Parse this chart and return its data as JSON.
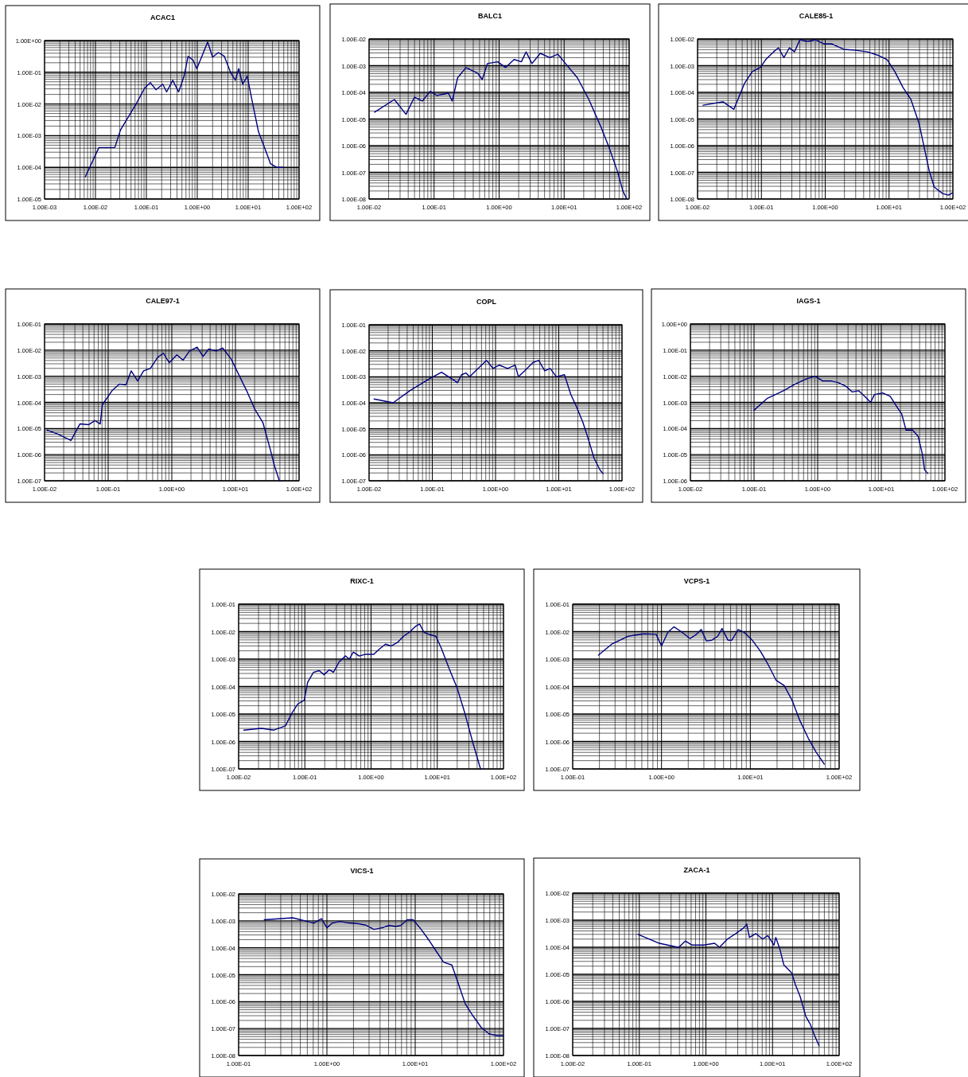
{
  "chart_data": [
    {
      "type": "line",
      "title": "ACAC1",
      "log": "xy",
      "grid": true,
      "xlim": [
        0.001,
        100
      ],
      "ylim": [
        1e-05,
        1
      ],
      "xticks": [
        {
          "value": 0.001,
          "label": "1.00E-03"
        },
        {
          "value": 0.01,
          "label": "1.00E-02"
        },
        {
          "value": 0.1,
          "label": "1.00E-01"
        },
        {
          "value": 1,
          "label": "1.00E+00"
        },
        {
          "value": 10,
          "label": "1.00E+01"
        },
        {
          "value": 100,
          "label": "1.00E+02"
        }
      ],
      "yticks": [
        {
          "value": 1e-05,
          "label": "1.00E-05"
        },
        {
          "value": 0.0001,
          "label": "1.00E-04"
        },
        {
          "value": 0.001,
          "label": "1.00E-03"
        },
        {
          "value": 0.01,
          "label": "1.00E-02"
        },
        {
          "value": 0.1,
          "label": "1.00E-01"
        },
        {
          "value": 1,
          "label": "1.00E+00"
        }
      ],
      "series": [
        {
          "color": "#000080",
          "x": [
            0.0063,
            0.0117,
            0.024,
            0.031,
            0.041,
            0.063,
            0.093,
            0.12,
            0.155,
            0.21,
            0.25,
            0.33,
            0.43,
            0.55,
            0.66,
            0.83,
            0.98,
            1.26,
            1.6,
            2.0,
            2.6,
            3.4,
            4.5,
            5.6,
            6.5,
            7.8,
            9.6,
            12.3,
            16,
            21,
            27.5,
            36,
            49
          ],
          "values": [
            5e-05,
            0.00042,
            0.00042,
            0.0015,
            0.0032,
            0.01,
            0.032,
            0.047,
            0.028,
            0.042,
            0.024,
            0.056,
            0.024,
            0.075,
            0.32,
            0.24,
            0.13,
            0.35,
            0.9,
            0.3,
            0.42,
            0.32,
            0.1,
            0.056,
            0.13,
            0.042,
            0.075,
            0.01,
            0.0013,
            0.00042,
            0.00013,
            0.0001,
            0.0001
          ]
        }
      ]
    },
    {
      "type": "line",
      "title": "BALC1",
      "log": "xy",
      "grid": true,
      "xlim": [
        0.01,
        100
      ],
      "ylim": [
        1e-08,
        0.01
      ],
      "xticks": [
        {
          "value": 0.01,
          "label": "1.00E-02"
        },
        {
          "value": 0.1,
          "label": "1.00E-01"
        },
        {
          "value": 1,
          "label": "1.00E+00"
        },
        {
          "value": 10,
          "label": "1.00E+01"
        },
        {
          "value": 100,
          "label": "1.00E+02"
        }
      ],
      "yticks": [
        {
          "value": 1e-08,
          "label": "1.00E-08"
        },
        {
          "value": 1e-07,
          "label": "1.00E-07"
        },
        {
          "value": 1e-06,
          "label": "1.00E-06"
        },
        {
          "value": 1e-05,
          "label": "1.00E-05"
        },
        {
          "value": 0.0001,
          "label": "1.00E-04"
        },
        {
          "value": 0.001,
          "label": "1.00E-03"
        },
        {
          "value": 0.01,
          "label": "1.00E-02"
        }
      ],
      "series": [
        {
          "color": "#000080",
          "x": [
            0.0122,
            0.0245,
            0.037,
            0.05,
            0.066,
            0.087,
            0.11,
            0.166,
            0.19,
            0.23,
            0.31,
            0.47,
            0.55,
            0.66,
            0.95,
            1.26,
            1.7,
            2.2,
            2.6,
            3.2,
            4.3,
            6,
            8,
            10.5,
            16,
            24,
            37,
            49,
            66,
            80,
            92
          ],
          "values": [
            1.8e-05,
            5.4e-05,
            1.5e-05,
            6.6e-05,
            4.7e-05,
            0.00011,
            7.6e-05,
            9.3e-05,
            4.7e-05,
            0.00035,
            0.00085,
            0.00052,
            0.0003,
            0.0012,
            0.0014,
            0.00085,
            0.0017,
            0.0014,
            0.0033,
            0.0012,
            0.0029,
            0.002,
            0.0027,
            0.0012,
            0.00035,
            5.4e-05,
            4.9e-06,
            8.7e-07,
            1.1e-07,
            2e-08,
            1e-08
          ]
        }
      ]
    },
    {
      "type": "line",
      "title": "CALE85-1",
      "log": "xy",
      "grid": true,
      "xlim": [
        0.01,
        100
      ],
      "ylim": [
        1e-08,
        0.01
      ],
      "xticks": [
        {
          "value": 0.01,
          "label": "1.00E-02"
        },
        {
          "value": 0.1,
          "label": "1.00E-01"
        },
        {
          "value": 1,
          "label": "1.00E+00"
        },
        {
          "value": 10,
          "label": "1.00E+01"
        },
        {
          "value": 100,
          "label": "1.00E+02"
        }
      ],
      "yticks": [
        {
          "value": 1e-08,
          "label": "1.00E-08"
        },
        {
          "value": 1e-07,
          "label": "1.00E-07"
        },
        {
          "value": 1e-06,
          "label": "1.00E-06"
        },
        {
          "value": 1e-05,
          "label": "1.00E-05"
        },
        {
          "value": 0.0001,
          "label": "1.00E-04"
        },
        {
          "value": 0.001,
          "label": "1.00E-03"
        },
        {
          "value": 0.01,
          "label": "1.00E-02"
        }
      ],
      "series": [
        {
          "color": "#000080",
          "x": [
            0.0122,
            0.025,
            0.037,
            0.054,
            0.072,
            0.096,
            0.117,
            0.155,
            0.185,
            0.225,
            0.275,
            0.33,
            0.4,
            0.53,
            0.71,
            0.95,
            1.26,
            1.95,
            2.95,
            4.6,
            6.9,
            9.3,
            12.3,
            16.6,
            22,
            29.5,
            35.5,
            42.7,
            51,
            69,
            85,
            98
          ],
          "values": [
            3.3e-05,
            4.4e-05,
            2.3e-05,
            0.00021,
            0.0006,
            0.00085,
            0.0017,
            0.0033,
            0.0047,
            0.002,
            0.0047,
            0.0033,
            0.0093,
            0.0081,
            0.0093,
            0.0066,
            0.0066,
            0.0041,
            0.0038,
            0.0033,
            0.0024,
            0.0017,
            0.0006,
            0.00015,
            5.4e-05,
            6.9e-06,
            8.7e-07,
            1.1e-07,
            2.8e-08,
            1.6e-08,
            1.4e-08,
            1.7e-08
          ]
        }
      ]
    },
    {
      "type": "line",
      "title": "CALE97-1",
      "log": "xy",
      "grid": true,
      "xlim": [
        0.01,
        100
      ],
      "ylim": [
        1e-07,
        0.1
      ],
      "xticks": [
        {
          "value": 0.01,
          "label": "1.00E-02"
        },
        {
          "value": 0.1,
          "label": "1.00E-01"
        },
        {
          "value": 1,
          "label": "1.00E+00"
        },
        {
          "value": 10,
          "label": "1.00E+01"
        },
        {
          "value": 100,
          "label": "1.00E+02"
        }
      ],
      "yticks": [
        {
          "value": 1e-07,
          "label": "1.00E-07"
        },
        {
          "value": 1e-06,
          "label": "1.00E-06"
        },
        {
          "value": 1e-05,
          "label": "1.00E-05"
        },
        {
          "value": 0.0001,
          "label": "1.00E-04"
        },
        {
          "value": 0.001,
          "label": "1.00E-03"
        },
        {
          "value": 0.01,
          "label": "1.00E-02"
        },
        {
          "value": 0.1,
          "label": "1.00E-01"
        }
      ],
      "series": [
        {
          "color": "#000080",
          "x": [
            0.011,
            0.016,
            0.026,
            0.036,
            0.049,
            0.062,
            0.075,
            0.081,
            0.115,
            0.15,
            0.19,
            0.23,
            0.29,
            0.36,
            0.46,
            0.6,
            0.74,
            0.91,
            1.2,
            1.5,
            1.9,
            2.5,
            3.1,
            3.8,
            5,
            6.3,
            8.5,
            11.2,
            15,
            20,
            27,
            35.5,
            41,
            49
          ],
          "values": [
            8.7e-06,
            6.2e-06,
            3.5e-06,
            1.5e-05,
            1.4e-05,
            2e-05,
            1.5e-05,
            8.1e-05,
            0.00028,
            0.0005,
            0.00047,
            0.0016,
            0.00066,
            0.0016,
            0.002,
            0.0053,
            0.0076,
            0.0033,
            0.0066,
            0.0041,
            0.0093,
            0.013,
            0.0057,
            0.011,
            0.0093,
            0.012,
            0.0047,
            0.0012,
            0.00028,
            5.7e-05,
            1.7e-05,
            1.5e-06,
            3.8e-07,
            1e-07
          ]
        }
      ]
    },
    {
      "type": "line",
      "title": "COPL",
      "log": "xy",
      "grid": true,
      "xlim": [
        0.01,
        100
      ],
      "ylim": [
        1e-07,
        0.1
      ],
      "xticks": [
        {
          "value": 0.01,
          "label": "1.00E-02"
        },
        {
          "value": 0.1,
          "label": "1.00E-01"
        },
        {
          "value": 1,
          "label": "1.00E+00"
        },
        {
          "value": 10,
          "label": "1.00E+01"
        },
        {
          "value": 100,
          "label": "1.00E+02"
        }
      ],
      "yticks": [
        {
          "value": 1e-07,
          "label": "1.00E-07"
        },
        {
          "value": 1e-06,
          "label": "1.00E-06"
        },
        {
          "value": 1e-05,
          "label": "1.00E-05"
        },
        {
          "value": 0.0001,
          "label": "1.00E-04"
        },
        {
          "value": 0.001,
          "label": "1.00E-03"
        },
        {
          "value": 0.01,
          "label": "1.00E-02"
        },
        {
          "value": 0.1,
          "label": "1.00E-01"
        }
      ],
      "series": [
        {
          "color": "#000080",
          "x": [
            0.012,
            0.024,
            0.045,
            0.091,
            0.14,
            0.22,
            0.25,
            0.29,
            0.34,
            0.39,
            0.52,
            0.72,
            0.91,
            1.15,
            1.55,
            2.05,
            2.3,
            2.9,
            3.9,
            4.8,
            6,
            7.3,
            9.2,
            12.3,
            15.5,
            19,
            24,
            29,
            36,
            45,
            50
          ],
          "values": [
            0.00014,
            0.0001,
            0.0003,
            0.00085,
            0.0015,
            0.00074,
            0.00059,
            0.0012,
            0.0014,
            0.001,
            0.002,
            0.0043,
            0.0021,
            0.0028,
            0.0021,
            0.0028,
            0.001,
            0.0017,
            0.0035,
            0.0043,
            0.0017,
            0.0021,
            0.001,
            0.0012,
            0.00021,
            7.2e-05,
            1.8e-05,
            4.4e-06,
            7.6e-07,
            2.6e-07,
            1.9e-07
          ]
        }
      ]
    },
    {
      "type": "line",
      "title": "IAGS-1",
      "log": "xy",
      "grid": true,
      "xlim": [
        0.01,
        100
      ],
      "ylim": [
        1e-06,
        1
      ],
      "xticks": [
        {
          "value": 0.01,
          "label": "1.00E-02"
        },
        {
          "value": 0.1,
          "label": "1.00E-01"
        },
        {
          "value": 1,
          "label": "1.00E+00"
        },
        {
          "value": 10,
          "label": "1.00E+01"
        },
        {
          "value": 100,
          "label": "1.00E+02"
        }
      ],
      "yticks": [
        {
          "value": 1e-06,
          "label": "1.00E-06"
        },
        {
          "value": 1e-05,
          "label": "1.00E-05"
        },
        {
          "value": 0.0001,
          "label": "1.00E-04"
        },
        {
          "value": 0.001,
          "label": "1.00E-03"
        },
        {
          "value": 0.01,
          "label": "1.00E-02"
        },
        {
          "value": 0.1,
          "label": "1.00E-01"
        },
        {
          "value": 1,
          "label": "1.00E+00"
        }
      ],
      "series": [
        {
          "color": "#000080",
          "x": [
            0.1,
            0.16,
            0.29,
            0.44,
            0.68,
            0.91,
            1.2,
            1.6,
            2.1,
            2.8,
            3.5,
            4.4,
            5.5,
            6.8,
            7.8,
            10.5,
            13.8,
            17.4,
            21,
            24.5,
            31,
            38,
            44,
            48,
            54
          ],
          "values": [
            0.0005,
            0.0014,
            0.0028,
            0.005,
            0.0081,
            0.01,
            0.0066,
            0.0066,
            0.0057,
            0.0041,
            0.0025,
            0.0028,
            0.0017,
            0.001,
            0.002,
            0.0023,
            0.0017,
            0.0007,
            0.00035,
            8.7e-05,
            8.7e-05,
            5e-05,
            1.1e-05,
            2.6e-06,
            1.9e-06
          ]
        }
      ]
    },
    {
      "type": "line",
      "title": "RIXC-1",
      "log": "xy",
      "grid": true,
      "xlim": [
        0.01,
        100
      ],
      "ylim": [
        1e-07,
        0.1
      ],
      "xticks": [
        {
          "value": 0.01,
          "label": "1.00E-02"
        },
        {
          "value": 0.1,
          "label": "1.00E-01"
        },
        {
          "value": 1,
          "label": "1.00E+00"
        },
        {
          "value": 10,
          "label": "1.00E+01"
        },
        {
          "value": 100,
          "label": "1.00E+02"
        }
      ],
      "yticks": [
        {
          "value": 1e-07,
          "label": "1.00E-07"
        },
        {
          "value": 1e-06,
          "label": "1.00E-06"
        },
        {
          "value": 1e-05,
          "label": "1.00E-05"
        },
        {
          "value": 0.0001,
          "label": "1.00E-04"
        },
        {
          "value": 0.001,
          "label": "1.00E-03"
        },
        {
          "value": 0.01,
          "label": "1.00E-02"
        },
        {
          "value": 0.1,
          "label": "1.00E-01"
        }
      ],
      "series": [
        {
          "color": "#000080",
          "x": [
            0.012,
            0.022,
            0.034,
            0.051,
            0.064,
            0.078,
            0.098,
            0.11,
            0.135,
            0.165,
            0.195,
            0.235,
            0.27,
            0.33,
            0.41,
            0.47,
            0.54,
            0.66,
            0.83,
            1.1,
            1.3,
            1.65,
            2,
            2.5,
            3.1,
            3.8,
            4.6,
            5.4,
            6.3,
            7.6,
            9.5,
            11.5,
            15,
            20,
            26,
            35,
            45
          ],
          "values": [
            2.6e-06,
            3e-06,
            2.6e-06,
            3.7e-06,
            1.1e-05,
            2.3e-05,
            3.2e-05,
            0.00014,
            0.00033,
            0.00038,
            0.00027,
            0.00041,
            0.00033,
            0.00079,
            0.0013,
            0.001,
            0.0018,
            0.0013,
            0.0015,
            0.0015,
            0.0022,
            0.0035,
            0.003,
            0.004,
            0.0068,
            0.0095,
            0.015,
            0.019,
            0.0095,
            0.0078,
            0.0068,
            0.0025,
            0.00047,
            8.7e-05,
            1.1e-05,
            7.9e-07,
            1e-07
          ]
        }
      ]
    },
    {
      "type": "line",
      "title": "VCPS-1",
      "log": "xy",
      "grid": true,
      "xlim": [
        0.1,
        100
      ],
      "ylim": [
        1e-07,
        0.1
      ],
      "xticks": [
        {
          "value": 0.1,
          "label": "1.00E-01"
        },
        {
          "value": 1,
          "label": "1.00E+00"
        },
        {
          "value": 10,
          "label": "1.00E+01"
        },
        {
          "value": 100,
          "label": "1.00E+02"
        }
      ],
      "yticks": [
        {
          "value": 1e-07,
          "label": "1.00E-07"
        },
        {
          "value": 1e-06,
          "label": "1.00E-06"
        },
        {
          "value": 1e-05,
          "label": "1.00E-05"
        },
        {
          "value": 0.0001,
          "label": "1.00E-04"
        },
        {
          "value": 0.001,
          "label": "1.00E-03"
        },
        {
          "value": 0.01,
          "label": "1.00E-02"
        },
        {
          "value": 0.1,
          "label": "1.00E-01"
        }
      ],
      "series": [
        {
          "color": "#000080",
          "x": [
            0.195,
            0.275,
            0.42,
            0.63,
            0.87,
            1.0,
            1.18,
            1.38,
            1.7,
            2.1,
            2.45,
            2.8,
            3.2,
            3.7,
            4.3,
            4.8,
            5.6,
            6.2,
            7.3,
            8.5,
            10.5,
            12.9,
            15.8,
            19.5,
            24,
            29.5,
            36,
            45,
            55,
            68
          ],
          "values": [
            0.0014,
            0.0035,
            0.0068,
            0.0083,
            0.008,
            0.003,
            0.0095,
            0.015,
            0.0095,
            0.0056,
            0.0078,
            0.012,
            0.0046,
            0.0049,
            0.0068,
            0.013,
            0.0049,
            0.0049,
            0.012,
            0.0095,
            0.0049,
            0.002,
            0.00065,
            0.00017,
            0.00011,
            3.2e-05,
            5.9e-06,
            1.3e-06,
            4.1e-07,
            1.5e-07
          ]
        }
      ]
    },
    {
      "type": "line",
      "title": "VICS-1",
      "log": "xy",
      "grid": true,
      "xlim": [
        0.1,
        100
      ],
      "ylim": [
        1e-08,
        0.01
      ],
      "xticks": [
        {
          "value": 0.1,
          "label": "1.00E-01"
        },
        {
          "value": 1,
          "label": "1.00E+00"
        },
        {
          "value": 10,
          "label": "1.00E+01"
        },
        {
          "value": 100,
          "label": "1.00E+02"
        }
      ],
      "yticks": [
        {
          "value": 1e-08,
          "label": "1.00E-08"
        },
        {
          "value": 1e-07,
          "label": "1.00E-07"
        },
        {
          "value": 1e-06,
          "label": "1.00E-06"
        },
        {
          "value": 1e-05,
          "label": "1.00E-05"
        },
        {
          "value": 0.0001,
          "label": "1.00E-04"
        },
        {
          "value": 0.001,
          "label": "1.00E-03"
        },
        {
          "value": 0.01,
          "label": "1.00E-02"
        }
      ],
      "series": [
        {
          "color": "#000080",
          "x": [
            0.195,
            0.41,
            0.71,
            0.87,
            1.0,
            1.15,
            1.4,
            1.8,
            2.3,
            2.8,
            3.4,
            4.2,
            5.1,
            6,
            6.9,
            8.1,
            9.5,
            11.7,
            14.5,
            17.8,
            21,
            26,
            30,
            37,
            45,
            56,
            69,
            85,
            99
          ],
          "values": [
            0.0011,
            0.0013,
            0.00083,
            0.0012,
            0.00055,
            0.00083,
            0.00095,
            0.00083,
            0.00078,
            0.00068,
            0.00048,
            0.00055,
            0.00068,
            0.00062,
            0.00068,
            0.0011,
            0.0011,
            0.00048,
            0.00018,
            6.5e-05,
            2.9e-05,
            2.3e-05,
            6e-06,
            8.1e-07,
            3e-07,
            1.1e-07,
            6.3e-08,
            5.5e-08,
            5.5e-08
          ]
        }
      ]
    },
    {
      "type": "line",
      "title": "ZACA-1",
      "log": "xy",
      "grid": true,
      "xlim": [
        0.01,
        100
      ],
      "ylim": [
        1e-08,
        0.01
      ],
      "xticks": [
        {
          "value": 0.01,
          "label": "1.00E-02"
        },
        {
          "value": 0.1,
          "label": "1.00E-01"
        },
        {
          "value": 1,
          "label": "1.00E+00"
        },
        {
          "value": 10,
          "label": "1.00E+01"
        },
        {
          "value": 100,
          "label": "1.00E+02"
        }
      ],
      "yticks": [
        {
          "value": 1e-08,
          "label": "1.00E-08"
        },
        {
          "value": 1e-07,
          "label": "1.00E-07"
        },
        {
          "value": 1e-06,
          "label": "1.00E-06"
        },
        {
          "value": 1e-05,
          "label": "1.00E-05"
        },
        {
          "value": 0.0001,
          "label": "1.00E-04"
        },
        {
          "value": 0.001,
          "label": "1.00E-03"
        },
        {
          "value": 0.01,
          "label": "1.00E-02"
        }
      ],
      "series": [
        {
          "color": "#000080",
          "x": [
            0.096,
            0.2,
            0.39,
            0.49,
            0.62,
            0.93,
            1.35,
            1.6,
            2.1,
            2.8,
            3.7,
            4.1,
            4.5,
            5.6,
            7.1,
            8.5,
            10.5,
            11.2,
            12.9,
            14.8,
            19.5,
            22,
            26,
            31.6,
            37,
            43,
            50
          ],
          "values": [
            0.0003,
            0.00014,
            9.8e-05,
            0.00017,
            0.00012,
            0.00012,
            0.00014,
            0.0001,
            0.0002,
            0.00032,
            0.00052,
            0.00072,
            0.00023,
            0.00032,
            0.0002,
            0.00027,
            0.00012,
            0.00023,
            8.5e-05,
            2.2e-05,
            1.1e-05,
            4.2e-06,
            1.5e-06,
            2.8e-07,
            1.4e-07,
            5.3e-08,
            2.3e-08
          ]
        }
      ]
    }
  ]
}
